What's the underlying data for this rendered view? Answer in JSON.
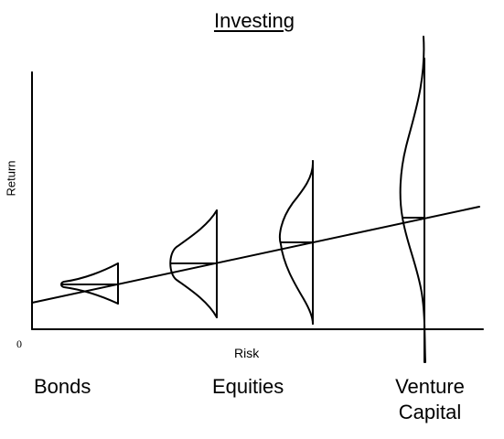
{
  "title": "Investing",
  "y_axis_label": "Return",
  "x_axis_label": "Risk",
  "origin_label": "0",
  "categories": [
    {
      "label": "Bonds"
    },
    {
      "label": "Equities"
    },
    {
      "label": "Venture Capital"
    }
  ],
  "colors": {
    "line": "#000000",
    "background": "#ffffff"
  }
}
